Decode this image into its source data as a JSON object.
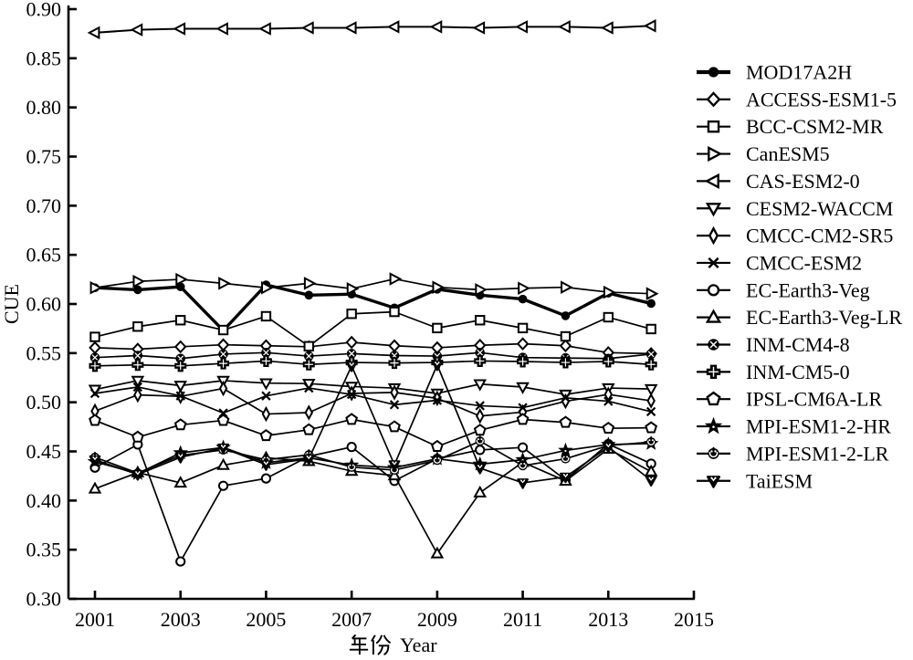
{
  "figure": {
    "background": "#ffffff",
    "ink_color": "#000000"
  },
  "axes": {
    "y": {
      "label": "CUE",
      "tick_labels": [
        "0.90",
        "0.85",
        "0.80",
        "0.75",
        "0.70",
        "0.65",
        "0.60",
        "0.55",
        "0.50",
        "0.45",
        "0.40",
        "0.35",
        "0.30"
      ],
      "min": 0.3,
      "max": 0.9,
      "step": 0.05
    },
    "x": {
      "label": "年份 Year",
      "label_cjk": "年份",
      "label_latin": "Year",
      "tick_labels": [
        "2001",
        "2003",
        "2005",
        "2007",
        "2009",
        "2011",
        "2013",
        "2015"
      ],
      "min": 2001,
      "max": 2015,
      "step": 2
    }
  },
  "legend": {
    "position": "right",
    "entries": [
      {
        "label": "MOD17A2H",
        "marker": "circle_filled"
      },
      {
        "label": "ACCESS-ESM1-5",
        "marker": "diamond_open"
      },
      {
        "label": "BCC-CSM2-MR",
        "marker": "square_open"
      },
      {
        "label": "CanESM5",
        "marker": "triangle_right_open"
      },
      {
        "label": "CAS-ESM2-0",
        "marker": "triangle_left_open"
      },
      {
        "label": "CESM2-WACCM",
        "marker": "triangle_down_open"
      },
      {
        "label": "CMCC-CM2-SR5",
        "marker": "thin_diamond_open"
      },
      {
        "label": "CMCC-ESM2",
        "marker": "x_cross"
      },
      {
        "label": "EC-Earth3-Veg",
        "marker": "circle_open"
      },
      {
        "label": "EC-Earth3-Veg-LR",
        "marker": "triangle_up_open"
      },
      {
        "label": "INM-CM4-8",
        "marker": "circle_x_filled"
      },
      {
        "label": "INM-CM5-0",
        "marker": "plus_filled"
      },
      {
        "label": "IPSL-CM6A-LR",
        "marker": "pentagon_open"
      },
      {
        "label": "MPI-ESM1-2-HR",
        "marker": "star_filled"
      },
      {
        "label": "MPI-ESM1-2-LR",
        "marker": "circle_plus_filled"
      },
      {
        "label": "TaiESM",
        "marker": "tri_down_v_filled"
      }
    ]
  },
  "chart_data": {
    "type": "line",
    "title": "",
    "xlabel": "年份 Year",
    "ylabel": "CUE",
    "xlim": [
      2000.4,
      2015
    ],
    "ylim": [
      0.3,
      0.9
    ],
    "grid": false,
    "legend_position": "right",
    "x": [
      2001,
      2002,
      2003,
      2004,
      2005,
      2006,
      2007,
      2008,
      2009,
      2010,
      2011,
      2012,
      2013,
      2014
    ],
    "series": [
      {
        "name": "MOD17A2H",
        "marker": "circle_filled",
        "line_width": 3.4,
        "values": [
          0.6165,
          0.6145,
          0.6175,
          0.573,
          0.6195,
          0.609,
          0.61,
          0.596,
          0.615,
          0.609,
          0.605,
          0.588,
          0.611,
          0.6005
        ]
      },
      {
        "name": "ACCESS-ESM1-5",
        "marker": "diamond_open",
        "line_width": 1.7,
        "values": [
          0.5555,
          0.554,
          0.5565,
          0.5585,
          0.5575,
          0.5565,
          0.561,
          0.5575,
          0.5555,
          0.558,
          0.5595,
          0.5575,
          0.5505,
          0.5495
        ]
      },
      {
        "name": "BCC-CSM2-MR",
        "marker": "square_open",
        "line_width": 1.7,
        "values": [
          0.5665,
          0.577,
          0.5835,
          0.5735,
          0.5875,
          0.557,
          0.59,
          0.592,
          0.5755,
          0.5835,
          0.5755,
          0.567,
          0.5865,
          0.5745
        ]
      },
      {
        "name": "CanESM5",
        "marker": "triangle_right_open",
        "line_width": 1.7,
        "values": [
          0.6165,
          0.623,
          0.625,
          0.621,
          0.6165,
          0.621,
          0.6155,
          0.6255,
          0.617,
          0.6145,
          0.616,
          0.617,
          0.612,
          0.6105
        ]
      },
      {
        "name": "CAS-ESM2-0",
        "marker": "triangle_left_open",
        "line_width": 2.0,
        "values": [
          0.876,
          0.879,
          0.88,
          0.88,
          0.88,
          0.881,
          0.881,
          0.882,
          0.882,
          0.881,
          0.882,
          0.882,
          0.881,
          0.883
        ]
      },
      {
        "name": "CESM2-WACCM",
        "marker": "triangle_down_open",
        "line_width": 1.7,
        "values": [
          0.513,
          0.522,
          0.517,
          0.522,
          0.5195,
          0.519,
          0.516,
          0.5145,
          0.509,
          0.5185,
          0.5155,
          0.508,
          0.5145,
          0.5135
        ]
      },
      {
        "name": "CMCC-CM2-SR5",
        "marker": "thin_diamond_open",
        "line_width": 1.7,
        "values": [
          0.491,
          0.5075,
          0.506,
          0.514,
          0.488,
          0.4895,
          0.509,
          0.51,
          0.504,
          0.486,
          0.49,
          0.501,
          0.508,
          0.5015
        ]
      },
      {
        "name": "CMCC-ESM2",
        "marker": "x_cross",
        "line_width": 1.7,
        "values": [
          0.509,
          0.5155,
          0.5065,
          0.489,
          0.5065,
          0.5145,
          0.508,
          0.4975,
          0.502,
          0.4965,
          0.4945,
          0.5045,
          0.501,
          0.4905
        ]
      },
      {
        "name": "EC-Earth3-Veg",
        "marker": "circle_open",
        "line_width": 1.7,
        "values": [
          0.4335,
          0.457,
          0.338,
          0.415,
          0.4225,
          0.445,
          0.4545,
          0.42,
          0.4425,
          0.4515,
          0.454,
          0.421,
          0.4575,
          0.4375
        ]
      },
      {
        "name": "EC-Earth3-Veg-LR",
        "marker": "triangle_up_open",
        "line_width": 1.7,
        "values": [
          0.412,
          0.4285,
          0.418,
          0.436,
          0.4435,
          0.44,
          0.43,
          0.4255,
          0.346,
          0.408,
          0.439,
          0.42,
          0.4525,
          0.4295
        ]
      },
      {
        "name": "INM-CM4-8",
        "marker": "circle_x_filled",
        "line_width": 1.7,
        "values": [
          0.5455,
          0.5475,
          0.5445,
          0.549,
          0.5505,
          0.547,
          0.5495,
          0.5475,
          0.547,
          0.5505,
          0.5455,
          0.545,
          0.5445,
          0.549
        ]
      },
      {
        "name": "INM-CM5-0",
        "marker": "plus_filled",
        "line_width": 1.7,
        "values": [
          0.537,
          0.538,
          0.537,
          0.5395,
          0.542,
          0.5385,
          0.5405,
          0.54,
          0.5405,
          0.542,
          0.5415,
          0.5405,
          0.5415,
          0.5385
        ]
      },
      {
        "name": "IPSL-CM6A-LR",
        "marker": "pentagon_open",
        "line_width": 1.7,
        "values": [
          0.4815,
          0.4645,
          0.477,
          0.4815,
          0.466,
          0.472,
          0.4825,
          0.475,
          0.455,
          0.4715,
          0.4825,
          0.4795,
          0.4735,
          0.474
        ]
      },
      {
        "name": "MPI-ESM1-2-HR",
        "marker": "star_filled",
        "line_width": 1.7,
        "values": [
          0.4395,
          0.4275,
          0.4485,
          0.454,
          0.4385,
          0.4435,
          0.436,
          0.4335,
          0.4425,
          0.437,
          0.4415,
          0.451,
          0.457,
          0.458
        ]
      },
      {
        "name": "MPI-ESM1-2-LR",
        "marker": "circle_plus_filled",
        "line_width": 1.7,
        "values": [
          0.444,
          0.428,
          0.446,
          0.4515,
          0.4415,
          0.4465,
          0.434,
          0.431,
          0.441,
          0.4605,
          0.4355,
          0.4425,
          0.456,
          0.4595
        ]
      },
      {
        "name": "TaiESM",
        "marker": "tri_down_v_filled",
        "line_width": 1.7,
        "values": [
          0.4415,
          0.4265,
          0.444,
          0.4535,
          0.4365,
          0.4425,
          0.537,
          0.4365,
          0.538,
          0.433,
          0.418,
          0.424,
          0.4545,
          0.4205
        ]
      }
    ]
  }
}
